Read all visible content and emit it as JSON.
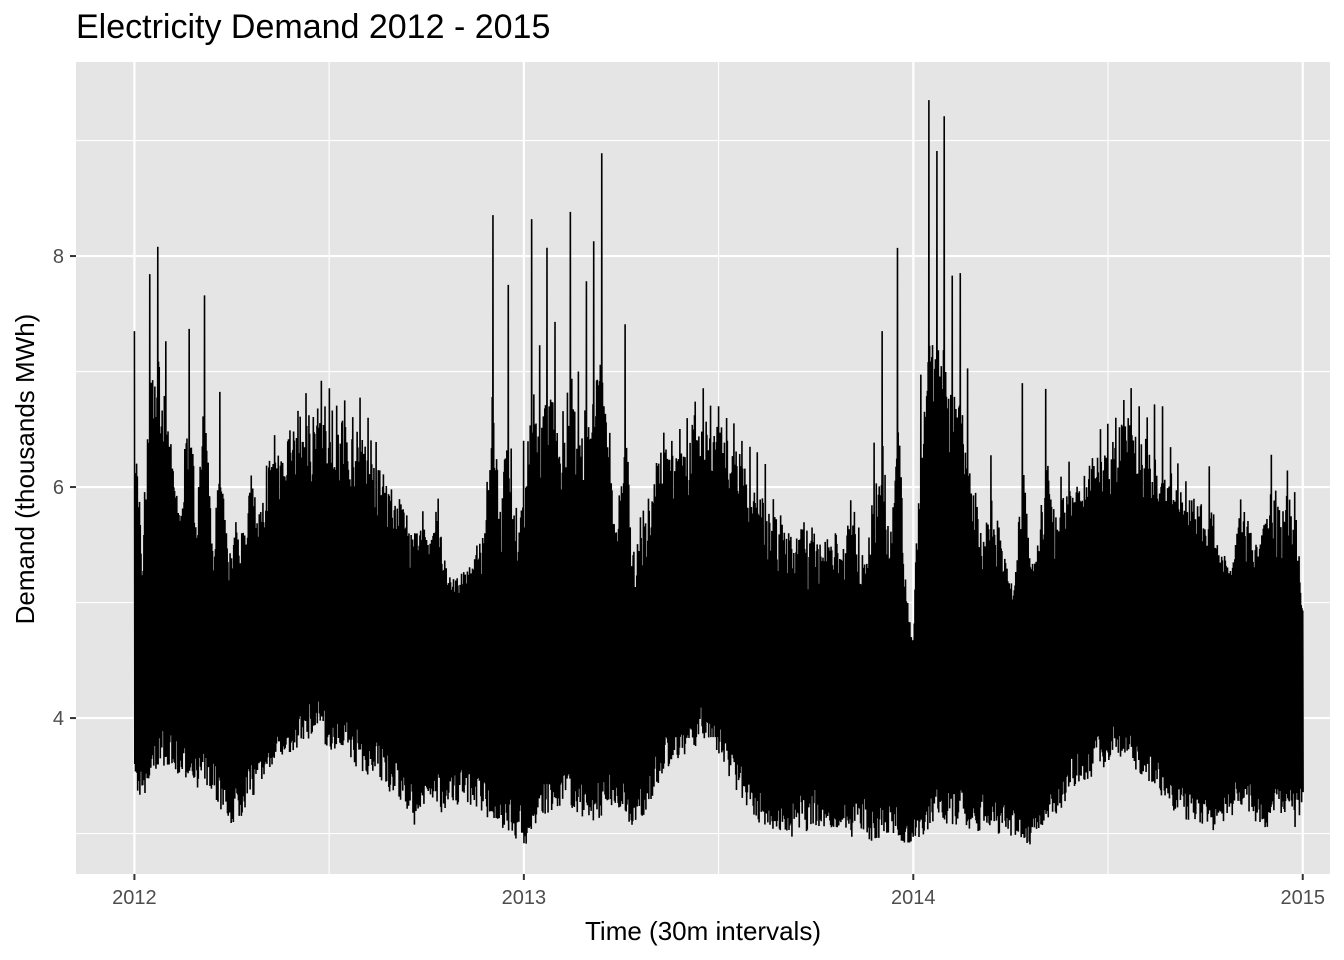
{
  "chart_data": {
    "type": "line",
    "title": "Electricity Demand 2012 - 2015",
    "xlabel": "Time (30m intervals)",
    "ylabel": "Demand (thousands MWh)",
    "x_ticks": [
      "2012",
      "2013",
      "2014",
      "2015"
    ],
    "y_ticks": [
      "4",
      "6",
      "8"
    ],
    "xlim": [
      2011.85,
      2015.07
    ],
    "ylim": [
      2.65,
      9.68
    ],
    "grid": true,
    "legend": "none",
    "colors": {
      "panel": "#e5e5e5",
      "grid": "#ffffff",
      "line": "#000000"
    },
    "series": [
      {
        "resolution": "weekly (daily peak / daily low envelope)",
        "x": [
          2012.0,
          2012.02,
          2012.04,
          2012.06,
          2012.08,
          2012.1,
          2012.12,
          2012.14,
          2012.16,
          2012.18,
          2012.2,
          2012.22,
          2012.24,
          2012.26,
          2012.28,
          2012.3,
          2012.32,
          2012.34,
          2012.36,
          2012.38,
          2012.4,
          2012.42,
          2012.44,
          2012.46,
          2012.48,
          2012.5,
          2012.52,
          2012.54,
          2012.56,
          2012.58,
          2012.6,
          2012.62,
          2012.64,
          2012.66,
          2012.68,
          2012.7,
          2012.72,
          2012.74,
          2012.76,
          2012.78,
          2012.8,
          2012.82,
          2012.84,
          2012.86,
          2012.88,
          2012.9,
          2012.92,
          2012.94,
          2012.96,
          2012.98,
          2013.0,
          2013.02,
          2013.04,
          2013.06,
          2013.08,
          2013.1,
          2013.12,
          2013.14,
          2013.16,
          2013.18,
          2013.2,
          2013.22,
          2013.24,
          2013.26,
          2013.28,
          2013.3,
          2013.32,
          2013.34,
          2013.36,
          2013.38,
          2013.4,
          2013.42,
          2013.44,
          2013.46,
          2013.48,
          2013.5,
          2013.52,
          2013.54,
          2013.56,
          2013.58,
          2013.6,
          2013.62,
          2013.64,
          2013.66,
          2013.68,
          2013.7,
          2013.72,
          2013.74,
          2013.76,
          2013.78,
          2013.8,
          2013.82,
          2013.84,
          2013.86,
          2013.88,
          2013.9,
          2013.92,
          2013.94,
          2013.96,
          2013.98,
          2014.0,
          2014.02,
          2014.04,
          2014.06,
          2014.08,
          2014.1,
          2014.12,
          2014.14,
          2014.16,
          2014.18,
          2014.2,
          2014.22,
          2014.24,
          2014.26,
          2014.28,
          2014.3,
          2014.32,
          2014.34,
          2014.36,
          2014.38,
          2014.4,
          2014.42,
          2014.44,
          2014.46,
          2014.48,
          2014.5,
          2014.52,
          2014.54,
          2014.56,
          2014.58,
          2014.6,
          2014.62,
          2014.64,
          2014.66,
          2014.68,
          2014.7,
          2014.72,
          2014.74,
          2014.76,
          2014.78,
          2014.8,
          2014.82,
          2014.84,
          2014.86,
          2014.88,
          2014.9,
          2014.92,
          2014.94,
          2014.96,
          2014.98,
          2015.0
        ],
        "high": [
          7.35,
          5.15,
          7.93,
          8.08,
          7.3,
          6.1,
          5.75,
          7.43,
          5.5,
          7.66,
          5.4,
          6.87,
          5.35,
          5.7,
          5.6,
          6.1,
          5.75,
          6.2,
          6.45,
          6.2,
          6.5,
          6.66,
          6.82,
          6.6,
          6.92,
          6.86,
          6.7,
          6.75,
          6.6,
          6.78,
          6.6,
          6.4,
          6.1,
          5.98,
          5.9,
          5.75,
          5.6,
          5.8,
          5.5,
          5.9,
          5.3,
          5.2,
          5.25,
          5.3,
          5.5,
          5.6,
          8.44,
          5.7,
          7.75,
          5.8,
          6.42,
          8.32,
          7.2,
          8.1,
          7.43,
          6.6,
          8.44,
          7.0,
          7.77,
          8.14,
          8.89,
          6.5,
          5.5,
          7.41,
          5.4,
          5.75,
          5.9,
          6.2,
          6.48,
          6.4,
          6.5,
          6.6,
          6.74,
          6.86,
          6.7,
          6.7,
          6.6,
          6.55,
          6.4,
          6.35,
          6.3,
          6.2,
          5.9,
          5.75,
          5.6,
          5.55,
          5.7,
          5.65,
          5.5,
          5.55,
          5.6,
          5.45,
          5.9,
          5.65,
          5.3,
          6.42,
          7.35,
          5.3,
          8.16,
          5.2,
          4.6,
          7.05,
          9.35,
          8.9,
          9.22,
          7.83,
          7.88,
          7.0,
          5.95,
          5.5,
          6.3,
          5.65,
          5.3,
          5.1,
          6.9,
          5.3,
          5.5,
          6.85,
          5.8,
          6.1,
          6.22,
          6.0,
          6.1,
          6.25,
          6.5,
          6.55,
          6.6,
          6.75,
          6.86,
          6.7,
          6.6,
          6.72,
          6.7,
          6.35,
          6.2,
          6.05,
          5.9,
          5.85,
          6.18,
          5.5,
          5.4,
          5.3,
          5.9,
          5.7,
          5.5,
          5.65,
          6.3,
          5.8,
          6.15,
          5.95,
          4.93
        ],
        "low": [
          3.28,
          3.3,
          3.4,
          3.55,
          3.6,
          3.5,
          3.45,
          3.5,
          3.4,
          3.35,
          3.3,
          3.2,
          3.1,
          3.05,
          3.2,
          3.3,
          3.4,
          3.5,
          3.6,
          3.6,
          3.7,
          3.75,
          3.8,
          3.85,
          3.8,
          3.7,
          3.75,
          3.7,
          3.6,
          3.55,
          3.5,
          3.5,
          3.4,
          3.35,
          3.3,
          3.2,
          3.05,
          3.2,
          3.25,
          3.2,
          3.15,
          3.2,
          3.3,
          3.25,
          3.2,
          3.15,
          3.1,
          3.05,
          3.0,
          2.95,
          2.88,
          2.95,
          3.1,
          3.15,
          3.2,
          3.25,
          3.2,
          3.15,
          3.1,
          3.1,
          3.15,
          3.25,
          3.2,
          3.1,
          3.05,
          3.1,
          3.25,
          3.4,
          3.5,
          3.6,
          3.65,
          3.7,
          3.75,
          3.8,
          3.7,
          3.65,
          3.5,
          3.4,
          3.3,
          3.2,
          3.1,
          3.05,
          3.0,
          3.0,
          2.95,
          3.0,
          3.0,
          3.05,
          3.05,
          3.0,
          3.05,
          3.05,
          2.95,
          3.0,
          2.95,
          2.92,
          2.93,
          3.0,
          2.95,
          2.9,
          2.9,
          2.95,
          3.05,
          3.15,
          3.1,
          3.05,
          3.1,
          3.05,
          3.0,
          3.05,
          2.95,
          3.0,
          3.0,
          2.93,
          2.95,
          2.88,
          3.0,
          3.05,
          3.1,
          3.2,
          3.3,
          3.4,
          3.45,
          3.5,
          3.55,
          3.6,
          3.6,
          3.65,
          3.55,
          3.5,
          3.45,
          3.4,
          3.3,
          3.2,
          3.15,
          3.1,
          3.1,
          3.05,
          3.0,
          3.05,
          3.1,
          3.15,
          3.2,
          3.15,
          3.1,
          3.05,
          3.05,
          3.1,
          3.15,
          3.05,
          3.2
        ]
      }
    ]
  }
}
